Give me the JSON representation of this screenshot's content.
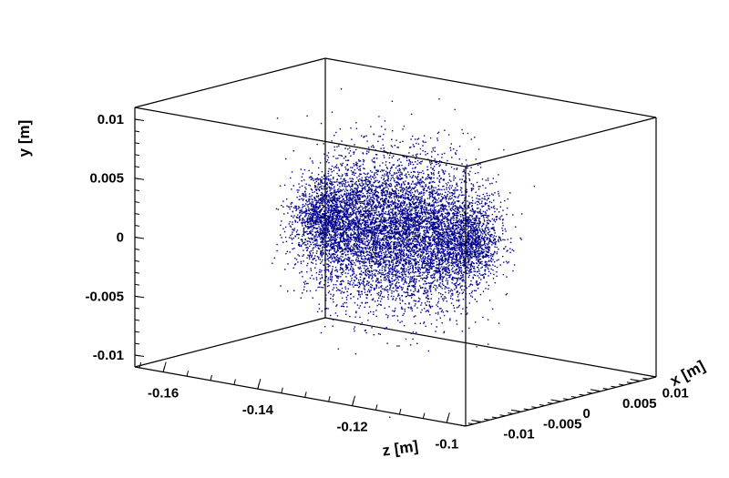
{
  "chart_data": {
    "type": "scatter",
    "projection": "3d",
    "title": "",
    "marker_color": "#00008b",
    "cloud_shape": "elongated ellipsoid along z",
    "xlabel": "x [m]",
    "ylabel": "y [m]",
    "zlabel": "z [m]",
    "xlim": [
      -0.012,
      0.012
    ],
    "ylim": [
      -0.011,
      0.011
    ],
    "zlim": [
      -0.166,
      -0.096
    ],
    "x_ticks": [
      {
        "value": -0.01,
        "label": "-0.01"
      },
      {
        "value": -0.005,
        "label": "-0.005"
      },
      {
        "value": 0,
        "label": "0"
      },
      {
        "value": 0.005,
        "label": "0.005"
      },
      {
        "value": 0.01,
        "label": "0.01"
      }
    ],
    "y_ticks": [
      {
        "value": -0.01,
        "label": "-0.01"
      },
      {
        "value": -0.005,
        "label": "-0.005"
      },
      {
        "value": 0,
        "label": "0"
      },
      {
        "value": 0.005,
        "label": "0.005"
      },
      {
        "value": 0.01,
        "label": "0.01"
      }
    ],
    "z_ticks": [
      {
        "value": -0.16,
        "label": "-0.16"
      },
      {
        "value": -0.14,
        "label": "-0.14"
      },
      {
        "value": -0.12,
        "label": "-0.12"
      },
      {
        "value": -0.1,
        "label": "-0.1"
      }
    ],
    "cloud": {
      "z_center": -0.131,
      "z_half_length": 0.017,
      "x_center": 0,
      "x_sigma": 0.0032,
      "y_center": 0.001,
      "y_sigma": 0.0032,
      "n_points": 9000
    }
  }
}
